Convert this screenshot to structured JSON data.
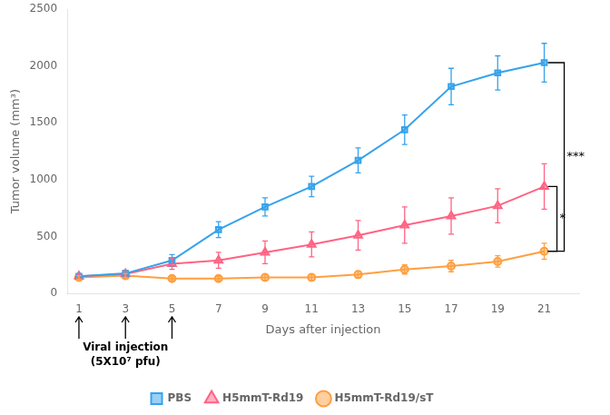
{
  "chart_data": {
    "type": "line",
    "xlabel": "Days after injection",
    "ylabel": "Tumor volume (mm³)",
    "x": [
      1,
      3,
      5,
      7,
      9,
      11,
      13,
      15,
      17,
      19,
      21
    ],
    "series": [
      {
        "name": "PBS",
        "marker": "square",
        "values": [
          150,
          175,
          290,
          560,
          760,
          940,
          1170,
          1440,
          1820,
          1940,
          2030
        ],
        "errors": [
          20,
          25,
          50,
          70,
          80,
          90,
          110,
          130,
          160,
          150,
          170
        ]
      },
      {
        "name": "H5mmT-Rd19",
        "marker": "triangle",
        "values": [
          150,
          170,
          260,
          290,
          360,
          430,
          510,
          600,
          680,
          770,
          940
        ],
        "errors": [
          20,
          25,
          50,
          70,
          100,
          110,
          130,
          160,
          160,
          150,
          200
        ]
      },
      {
        "name": "H5mmT-Rd19/sT",
        "marker": "circle",
        "values": [
          140,
          155,
          130,
          130,
          140,
          140,
          165,
          210,
          240,
          280,
          370
        ],
        "errors": [
          15,
          20,
          20,
          20,
          25,
          25,
          30,
          40,
          50,
          50,
          70
        ]
      }
    ],
    "xlim": [
      0.5,
      22.5
    ],
    "xticks": [
      1,
      3,
      5,
      7,
      9,
      11,
      13,
      15,
      17,
      19,
      21
    ],
    "ylim": [
      0,
      2500
    ],
    "yticks": [
      0,
      500,
      1000,
      1500,
      2000,
      2500
    ],
    "grid": false,
    "legend": "bottom",
    "annotations": [
      "Viral injection",
      "(5X10⁷ pfu)"
    ],
    "injection_days": [
      1,
      3,
      5
    ],
    "significance": [
      {
        "label": "***",
        "between": [
          "PBS",
          "H5mmT-Rd19/sT"
        ]
      },
      {
        "label": "*",
        "between": [
          "H5mmT-Rd19",
          "H5mmT-Rd19/sT"
        ]
      }
    ]
  }
}
